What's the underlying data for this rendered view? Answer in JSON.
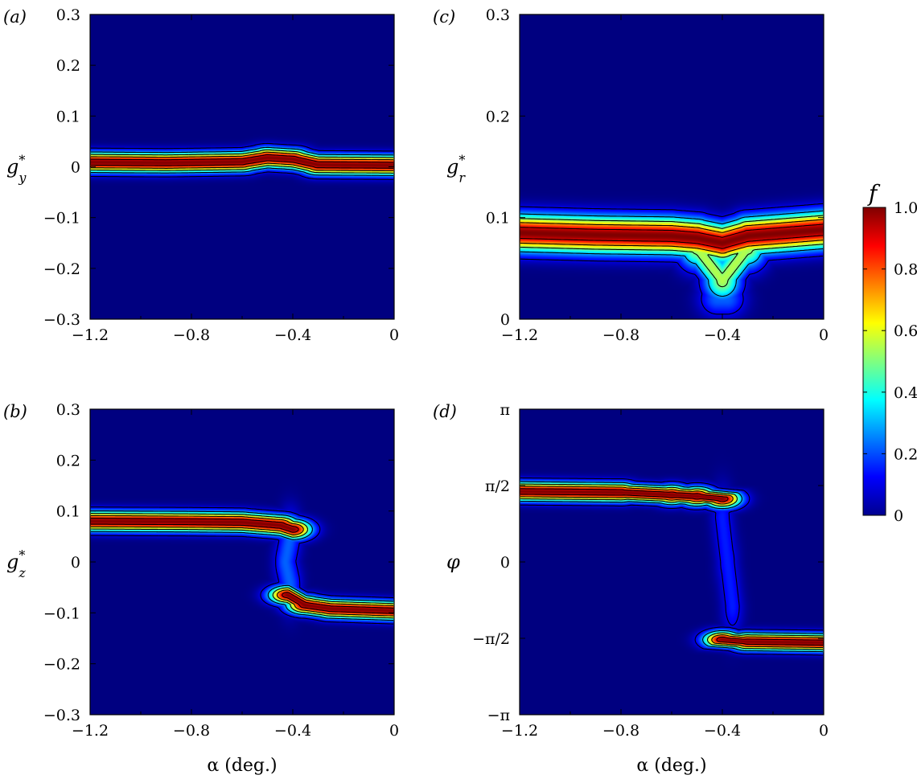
{
  "colors": {
    "background": "#00008f",
    "frame": "#000000",
    "contour": "#000000"
  },
  "chart_data": [
    {
      "type": "heatmap",
      "panel_label": "(a)",
      "ylabel": {
        "main": "g",
        "sup": "*",
        "sub": "y"
      },
      "xlabel": "",
      "xlim": [
        -1.2,
        0
      ],
      "ylim": [
        -0.3,
        0.3
      ],
      "xticks": [
        -1.2,
        -0.8,
        -0.4,
        0
      ],
      "xtick_labels": [
        "−1.2",
        "−0.8",
        "−0.4",
        "0"
      ],
      "yticks": [
        -0.3,
        -0.2,
        -0.1,
        0,
        0.1,
        0.2,
        0.3
      ],
      "ytick_labels": [
        "−0.3",
        "−0.2",
        "−0.1",
        "0",
        "0.1",
        "0.2",
        "0.3"
      ],
      "ridges": [
        {
          "points": [
            [
              -1.2,
              0.009
            ],
            [
              -0.9,
              0.008
            ],
            [
              -0.6,
              0.01
            ],
            [
              -0.5,
              0.018
            ],
            [
              -0.4,
              0.015
            ],
            [
              -0.3,
              0.004
            ],
            [
              0,
              0.003
            ]
          ],
          "width": 0.013,
          "peak": 1.0
        }
      ]
    },
    {
      "type": "heatmap",
      "panel_label": "(b)",
      "ylabel": {
        "main": "g",
        "sup": "*",
        "sub": "z"
      },
      "xlabel": "α (deg.)",
      "xlim": [
        -1.2,
        0
      ],
      "ylim": [
        -0.3,
        0.3
      ],
      "xticks": [
        -1.2,
        -0.8,
        -0.4,
        0
      ],
      "xtick_labels": [
        "−1.2",
        "−0.8",
        "−0.4",
        "0"
      ],
      "yticks": [
        -0.3,
        -0.2,
        -0.1,
        0,
        0.1,
        0.2,
        0.3
      ],
      "ytick_labels": [
        "−0.3",
        "−0.2",
        "−0.1",
        "0",
        "0.1",
        "0.2",
        "0.3"
      ],
      "ridges": [
        {
          "points": [
            [
              -1.2,
              0.08
            ],
            [
              -0.8,
              0.079
            ],
            [
              -0.6,
              0.078
            ],
            [
              -0.45,
              0.072
            ],
            [
              -0.4,
              0.064
            ]
          ],
          "width": 0.013,
          "peak": 1.0
        },
        {
          "points": [
            [
              -0.41,
              0.05
            ],
            [
              -0.43,
              0.0
            ],
            [
              -0.41,
              -0.045
            ]
          ],
          "width": 0.016,
          "peak": 0.22
        },
        {
          "points": [
            [
              -0.42,
              -0.065
            ],
            [
              -0.35,
              -0.085
            ],
            [
              -0.25,
              -0.092
            ],
            [
              0,
              -0.096
            ]
          ],
          "width": 0.012,
          "peak": 1.0
        }
      ]
    },
    {
      "type": "heatmap",
      "panel_label": "(c)",
      "ylabel": {
        "main": "g",
        "sup": "*",
        "sub": "r"
      },
      "xlabel": "",
      "xlim": [
        -1.2,
        0
      ],
      "ylim": [
        0,
        0.3
      ],
      "xticks": [
        -1.2,
        -0.8,
        -0.4,
        0
      ],
      "xtick_labels": [
        "−1.2",
        "−0.8",
        "−0.4",
        "0"
      ],
      "yticks": [
        0,
        0.1,
        0.2,
        0.3
      ],
      "ytick_labels": [
        "0",
        "0.1",
        "0.2",
        "0.3"
      ],
      "ridges": [
        {
          "points": [
            [
              -1.2,
              0.085
            ],
            [
              -0.9,
              0.083
            ],
            [
              -0.6,
              0.082
            ],
            [
              -0.5,
              0.08
            ],
            [
              -0.4,
              0.075
            ],
            [
              -0.3,
              0.082
            ],
            [
              0,
              0.088
            ]
          ],
          "width": 0.012,
          "peak": 1.0
        },
        {
          "points": [
            [
              -0.5,
              0.07
            ],
            [
              -0.4,
              0.038
            ],
            [
              -0.3,
              0.07
            ]
          ],
          "width": 0.014,
          "peak": 0.55
        },
        {
          "points": [
            [
              -0.42,
              0.02
            ],
            [
              -0.38,
              0.02
            ]
          ],
          "width": 0.012,
          "peak": 0.22
        }
      ]
    },
    {
      "type": "heatmap",
      "panel_label": "(d)",
      "ylabel": {
        "main": "φ",
        "sup": "",
        "sub": ""
      },
      "xlabel": "α (deg.)",
      "xlim": [
        -1.2,
        0
      ],
      "ylim": [
        -3.14159,
        3.14159
      ],
      "xticks": [
        -1.2,
        -0.8,
        -0.4,
        0
      ],
      "xtick_labels": [
        "−1.2",
        "−0.8",
        "−0.4",
        "0"
      ],
      "yticks": [
        -3.14159,
        -1.5708,
        0,
        1.5708,
        3.14159
      ],
      "ytick_labels": [
        "−π",
        "−π/2",
        "0",
        "π/2",
        "π"
      ],
      "ridges": [
        {
          "points": [
            [
              -1.2,
              1.45
            ],
            [
              -0.8,
              1.43
            ],
            [
              -0.6,
              1.38
            ],
            [
              -0.5,
              1.35
            ],
            [
              -0.4,
              1.3
            ]
          ],
          "width": 0.13,
          "peak": 1.0
        },
        {
          "points": [
            [
              -0.4,
              0.9
            ],
            [
              -0.38,
              0.0
            ],
            [
              -0.36,
              -0.9
            ]
          ],
          "width": 0.2,
          "peak": 0.15
        },
        {
          "points": [
            [
              -0.4,
              -1.6
            ],
            [
              -0.3,
              -1.64
            ],
            [
              0,
              -1.66
            ]
          ],
          "width": 0.12,
          "peak": 1.0
        }
      ]
    }
  ],
  "colorbar": {
    "label": "f",
    "min": 0,
    "max": 1.0,
    "ticks": [
      0,
      0.2,
      0.4,
      0.6,
      0.8,
      1.0
    ],
    "tick_labels": [
      "0",
      "0.2",
      "0.4",
      "0.6",
      "0.8",
      "1.0"
    ],
    "colormap": "jet"
  }
}
